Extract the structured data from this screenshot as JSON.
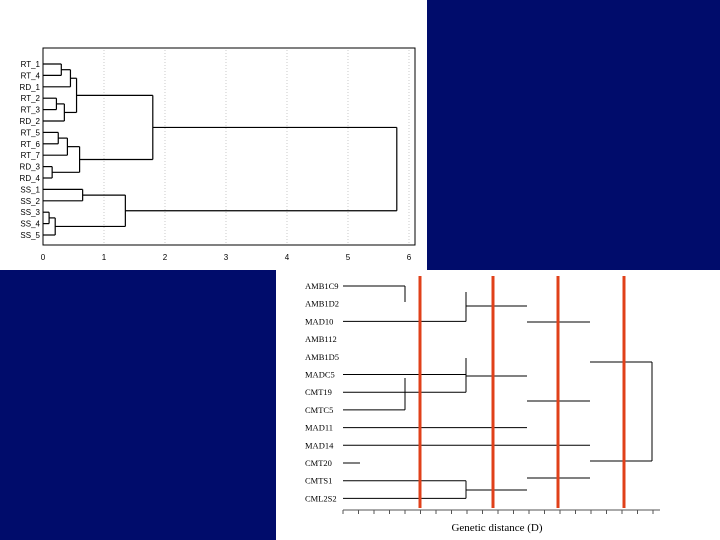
{
  "colors": {
    "navy_block": "#000c6b",
    "cutoff_line": "#e0401a",
    "tree_line": "#000000",
    "grid": "#9a9a9a"
  },
  "top_dendrogram": {
    "leaves": [
      "RT_1",
      "RT_4",
      "RD_1",
      "RT_2",
      "RT_3",
      "RD_2",
      "RT_5",
      "RT_6",
      "RT_7",
      "RD_3",
      "RD_4",
      "SS_1",
      "SS_2",
      "SS_3",
      "SS_4",
      "SS_5"
    ],
    "x_ticks": [
      "0",
      "1",
      "2",
      "3",
      "4",
      "5",
      "6"
    ],
    "x_range": [
      0,
      6
    ]
  },
  "bottom_dendrogram": {
    "leaves": [
      "AMB1C9",
      "AMB1D2",
      "MAD10",
      "AMB112",
      "AMB1D5",
      "MADC5",
      "CMT19",
      "CMTC5",
      "MAD11",
      "MAD14",
      "CMT20",
      "CMTS1",
      "CML2S2"
    ],
    "xlabel": "Genetic distance (D)"
  }
}
